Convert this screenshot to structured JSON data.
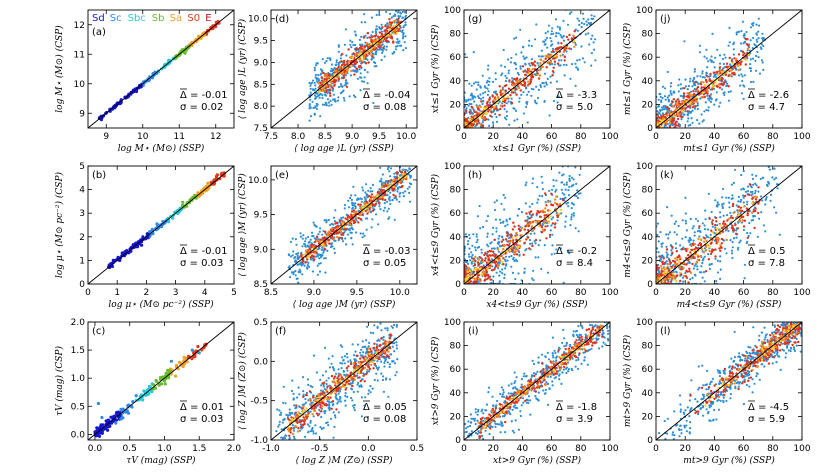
{
  "figure": {
    "legend": [
      {
        "label": "Sd",
        "color": "#1515d0"
      },
      {
        "label": "Sc",
        "color": "#2f8ae6"
      },
      {
        "label": "Sbc",
        "color": "#27c9d6"
      },
      {
        "label": "Sb",
        "color": "#6aba2e"
      },
      {
        "label": "Sa",
        "color": "#f2a020"
      },
      {
        "label": "S0",
        "color": "#e03a1a"
      },
      {
        "label": "E",
        "color": "#c01010"
      }
    ],
    "colors": {
      "scatter_blue": "#2d8fd6",
      "dense_red": "#e2321a",
      "dense_orange": "#f08a1e",
      "dense_yellow": "#f4d430",
      "line": "#000000"
    }
  },
  "chart_data": [
    {
      "id": "a",
      "type": "scatter",
      "label": "(a)",
      "xlabel": "log M⋆ (M⊙) (SSP)",
      "ylabel": "log M⋆ (M⊙) (CSP)",
      "xlim": [
        8.5,
        12.5
      ],
      "ylim": [
        8.5,
        12.5
      ],
      "xticks": [
        9,
        10,
        11,
        12
      ],
      "yticks": [
        9,
        10,
        11,
        12
      ],
      "style": "legend",
      "delta": "-0.01",
      "sigma": "0.02",
      "show_legend": true,
      "tick_format": 0
    },
    {
      "id": "d",
      "type": "scatter",
      "label": "(d)",
      "xlabel": "⟨ log age ⟩L (yr) (SSP)",
      "ylabel": "⟨ log age ⟩L (yr) (CSP)",
      "xlim": [
        7.5,
        10.2
      ],
      "ylim": [
        7.5,
        10.2
      ],
      "xticks": [
        7.5,
        8.0,
        8.5,
        9.0,
        9.5,
        10.0
      ],
      "yticks": [
        7.5,
        8.0,
        8.5,
        9.0,
        9.5,
        10.0
      ],
      "style": "density",
      "delta": "-0.04",
      "sigma": "0.08",
      "tick_format": 1
    },
    {
      "id": "g",
      "type": "scatter",
      "label": "(g)",
      "xlabel": "xt≤1 Gyr (%) (SSP)",
      "ylabel": "xt≤1 Gyr (%) (CSP)",
      "xlim": [
        0,
        100
      ],
      "ylim": [
        0,
        100
      ],
      "xticks": [
        0,
        20,
        40,
        60,
        80,
        100
      ],
      "yticks": [
        0,
        20,
        40,
        60,
        80,
        100
      ],
      "style": "density",
      "delta": "-3.3",
      "sigma": "5.0",
      "tick_format": 0
    },
    {
      "id": "j",
      "type": "scatter",
      "label": "(j)",
      "xlabel": "mt≤1 Gyr (%) (SSP)",
      "ylabel": "mt≤1 Gyr (%) (CSP)",
      "xlim": [
        0,
        100
      ],
      "ylim": [
        0,
        100
      ],
      "xticks": [
        0,
        20,
        40,
        60,
        80,
        100
      ],
      "yticks": [
        0,
        20,
        40,
        60,
        80,
        100
      ],
      "style": "density",
      "delta": "-2.6",
      "sigma": "4.7",
      "tick_format": 0
    },
    {
      "id": "b",
      "type": "scatter",
      "label": "(b)",
      "xlabel": "log μ⋆ (M⊙ pc⁻²) (SSP)",
      "ylabel": "log μ⋆ (M⊙ pc⁻²) (CSP)",
      "xlim": [
        0,
        5
      ],
      "ylim": [
        0,
        5
      ],
      "xticks": [
        0,
        1,
        2,
        3,
        4,
        5
      ],
      "yticks": [
        0,
        1,
        2,
        3,
        4,
        5
      ],
      "style": "legend",
      "delta": "-0.01",
      "sigma": "0.03",
      "tick_format": 0
    },
    {
      "id": "e",
      "type": "scatter",
      "label": "(e)",
      "xlabel": "⟨ log age ⟩M (yr) (SSP)",
      "ylabel": "⟨ log age ⟩M (yr) (CSP)",
      "xlim": [
        8.5,
        10.2
      ],
      "ylim": [
        8.5,
        10.2
      ],
      "xticks": [
        8.5,
        9.0,
        9.5,
        10.0
      ],
      "yticks": [
        8.5,
        9.0,
        9.5,
        10.0
      ],
      "style": "density",
      "delta": "-0.03",
      "sigma": "0.05",
      "tick_format": 1
    },
    {
      "id": "h",
      "type": "scatter",
      "label": "(h)",
      "xlabel": "x4<t≤9 Gyr (%) (SSP)",
      "ylabel": "x4<t≤9 Gyr (%) (CSP)",
      "xlim": [
        0,
        100
      ],
      "ylim": [
        0,
        100
      ],
      "xticks": [
        0,
        20,
        40,
        60,
        80,
        100
      ],
      "yticks": [
        0,
        20,
        40,
        60,
        80,
        100
      ],
      "style": "density",
      "delta": "-0.2",
      "sigma": "8.4",
      "tick_format": 0
    },
    {
      "id": "k",
      "type": "scatter",
      "label": "(k)",
      "xlabel": "m4<t≤9 Gyr (%) (SSP)",
      "ylabel": "m4<t≤9 Gyr (%) (CSP)",
      "xlim": [
        0,
        100
      ],
      "ylim": [
        0,
        100
      ],
      "xticks": [
        0,
        20,
        40,
        60,
        80,
        100
      ],
      "yticks": [
        0,
        20,
        40,
        60,
        80,
        100
      ],
      "style": "density",
      "delta": "0.5",
      "sigma": "7.8",
      "tick_format": 0
    },
    {
      "id": "c",
      "type": "scatter",
      "label": "(c)",
      "xlabel": "τV (mag) (SSP)",
      "ylabel": "τV (mag) (CSP)",
      "xlim": [
        -0.1,
        2.0
      ],
      "ylim": [
        -0.1,
        2.0
      ],
      "xticks": [
        0.0,
        0.5,
        1.0,
        1.5,
        2.0
      ],
      "yticks": [
        0.0,
        0.5,
        1.0,
        1.5,
        2.0
      ],
      "style": "legend",
      "delta": "0.01",
      "sigma": "0.03",
      "tick_format": 1
    },
    {
      "id": "f",
      "type": "scatter",
      "label": "(f)",
      "xlabel": "⟨ log Z ⟩M (Z⊙) (SSP)",
      "ylabel": "⟨ log Z ⟩M (Z⊙) (CSP)",
      "xlim": [
        -1.0,
        0.5
      ],
      "ylim": [
        -1.0,
        0.5
      ],
      "xticks": [
        -1.0,
        -0.5,
        0.0,
        0.5
      ],
      "yticks": [
        -1.0,
        -0.5,
        0.0,
        0.5
      ],
      "style": "density",
      "delta": "0.05",
      "sigma": "0.08",
      "tick_format": 1
    },
    {
      "id": "i",
      "type": "scatter",
      "label": "(i)",
      "xlabel": "xt>9 Gyr (%) (SSP)",
      "ylabel": "xt>9 Gyr (%) (CSP)",
      "xlim": [
        0,
        100
      ],
      "ylim": [
        0,
        100
      ],
      "xticks": [
        0,
        20,
        40,
        60,
        80,
        100
      ],
      "yticks": [
        0,
        20,
        40,
        60,
        80,
        100
      ],
      "style": "density",
      "delta": "-1.8",
      "sigma": "3.9",
      "tick_format": 0
    },
    {
      "id": "l",
      "type": "scatter",
      "label": "(l)",
      "xlabel": "mt>9 Gyr (%) (SSP)",
      "ylabel": "mt>9 Gyr (%) (CSP)",
      "xlim": [
        0,
        100
      ],
      "ylim": [
        0,
        100
      ],
      "xticks": [
        0,
        20,
        40,
        60,
        80,
        100
      ],
      "yticks": [
        0,
        20,
        40,
        60,
        80,
        100
      ],
      "style": "density",
      "delta": "-4.5",
      "sigma": "5.9",
      "tick_format": 0
    }
  ]
}
